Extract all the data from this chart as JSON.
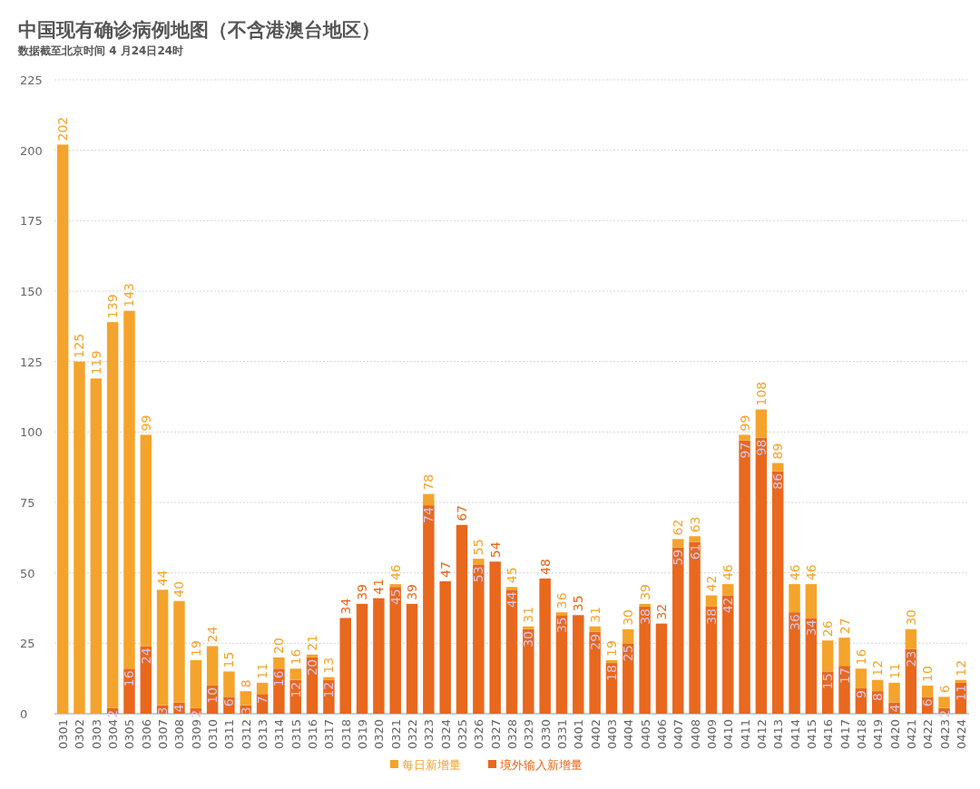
{
  "chart_data": {
    "type": "bar",
    "title": "中国现有确诊病例地图（不含港澳台地区）",
    "subtitle": "数据截至北京时间 4 月24日24时",
    "categories": [
      "0301",
      "0302",
      "0303",
      "0304",
      "0305",
      "0306",
      "0307",
      "0308",
      "0309",
      "0310",
      "0311",
      "0312",
      "0313",
      "0314",
      "0315",
      "0316",
      "0317",
      "0318",
      "0319",
      "0320",
      "0321",
      "0322",
      "0323",
      "0324",
      "0325",
      "0326",
      "0327",
      "0328",
      "0329",
      "0330",
      "0331",
      "0401",
      "0402",
      "0403",
      "0404",
      "0405",
      "0406",
      "0407",
      "0408",
      "0409",
      "0410",
      "0411",
      "0412",
      "0413",
      "0414",
      "0415",
      "0416",
      "0417",
      "0418",
      "0419",
      "0420",
      "0421",
      "0422",
      "0423",
      "0424"
    ],
    "stacked": true,
    "ylim": [
      0,
      225
    ],
    "yticks": [
      0,
      25,
      50,
      75,
      100,
      125,
      150,
      175,
      200,
      225
    ],
    "grid": "y",
    "legend": "bottom",
    "series": [
      {
        "name": "境外输入新增量",
        "color": "#e8681e",
        "values": [
          0,
          0,
          0,
          2,
          16,
          24,
          3,
          4,
          2,
          10,
          6,
          3,
          7,
          16,
          12,
          20,
          12,
          34,
          39,
          41,
          45,
          39,
          74,
          47,
          67,
          53,
          54,
          44,
          30,
          48,
          35,
          35,
          29,
          18,
          25,
          38,
          32,
          59,
          61,
          38,
          42,
          97,
          98,
          86,
          36,
          34,
          15,
          17,
          9,
          8,
          4,
          23,
          6,
          2,
          11
        ],
        "value_labels": [
          null,
          null,
          null,
          "2",
          "16",
          "24",
          "3",
          "4",
          "2",
          "10",
          "6",
          "3",
          "7",
          "16",
          "12",
          "20",
          "12",
          null,
          null,
          null,
          "45",
          null,
          "74",
          null,
          null,
          "53",
          null,
          "44",
          "30",
          null,
          "35",
          null,
          "29",
          "18",
          "25",
          "38",
          null,
          "59",
          "61",
          "38",
          "42",
          "97",
          "98",
          "86",
          "36",
          "34",
          "15",
          "17",
          "9",
          "8",
          "4",
          "23",
          "6",
          "2",
          "11"
        ]
      },
      {
        "name": "每日新增量",
        "color": "#f4a42c",
        "values": [
          202,
          125,
          119,
          137,
          127,
          75,
          41,
          36,
          17,
          14,
          9,
          5,
          4,
          4,
          4,
          1,
          1,
          0,
          0,
          0,
          1,
          0,
          4,
          0,
          0,
          2,
          0,
          1,
          1,
          0,
          1,
          0,
          2,
          1,
          5,
          1,
          0,
          3,
          2,
          4,
          4,
          2,
          10,
          3,
          10,
          12,
          11,
          10,
          7,
          4,
          7,
          7,
          4,
          4,
          1
        ]
      }
    ],
    "totals": [
      "202",
      "125",
      "119",
      "139",
      "143",
      "99",
      "44",
      "40",
      "19",
      "24",
      "15",
      "8",
      "11",
      "20",
      "16",
      "21",
      "13",
      "34",
      "39",
      "41",
      "46",
      "39",
      "78",
      "47",
      "67",
      "55",
      "54",
      "45",
      "31",
      "48",
      "36",
      "35",
      "31",
      "19",
      "30",
      "39",
      "32",
      "62",
      "63",
      "42",
      "46",
      "99",
      "108",
      "89",
      "46",
      "46",
      "26",
      "27",
      "16",
      "12",
      "11",
      "30",
      "10",
      "6",
      "12"
    ]
  }
}
